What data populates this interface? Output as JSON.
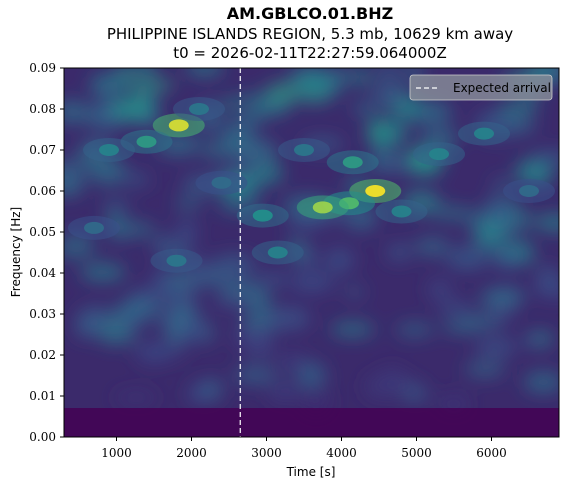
{
  "chart_data": {
    "type": "heatmap",
    "title": "AM.GBLCO.01.BHZ",
    "subtitle": "PHILIPPINE ISLANDS REGION, 5.3 mb, 10629 km away",
    "t0_line": "t0 = 2026-02-11T22:27:59.064000Z",
    "xlabel": "Time [s]",
    "ylabel": "Frequency [Hz]",
    "xlim": [
      300,
      6900
    ],
    "ylim": [
      0.0,
      0.09
    ],
    "x_ticks": [
      1000,
      2000,
      3000,
      4000,
      5000,
      6000
    ],
    "y_ticks": [
      0.0,
      0.01,
      0.02,
      0.03,
      0.04,
      0.05,
      0.06,
      0.07,
      0.08,
      0.09
    ],
    "y_tick_labels": [
      "0.00",
      "0.01",
      "0.02",
      "0.03",
      "0.04",
      "0.05",
      "0.06",
      "0.07",
      "0.08",
      "0.09"
    ],
    "colormap": "viridis",
    "expected_arrival": {
      "time": 2650,
      "label": "Expected arrival",
      "color": "#ffffff",
      "style": "dashed"
    },
    "legend_placement": "top-right",
    "hotspots": [
      {
        "time": 1830,
        "freq": 0.076,
        "intensity": 0.95
      },
      {
        "time": 1400,
        "freq": 0.072,
        "intensity": 0.55
      },
      {
        "time": 900,
        "freq": 0.07,
        "intensity": 0.45
      },
      {
        "time": 4450,
        "freq": 0.06,
        "intensity": 1.0
      },
      {
        "time": 4100,
        "freq": 0.057,
        "intensity": 0.7
      },
      {
        "time": 3750,
        "freq": 0.056,
        "intensity": 0.85
      },
      {
        "time": 4150,
        "freq": 0.067,
        "intensity": 0.55
      },
      {
        "time": 2950,
        "freq": 0.054,
        "intensity": 0.5
      },
      {
        "time": 3150,
        "freq": 0.045,
        "intensity": 0.45
      },
      {
        "time": 5300,
        "freq": 0.069,
        "intensity": 0.45
      },
      {
        "time": 5900,
        "freq": 0.074,
        "intensity": 0.45
      },
      {
        "time": 3500,
        "freq": 0.07,
        "intensity": 0.4
      },
      {
        "time": 4800,
        "freq": 0.055,
        "intensity": 0.45
      },
      {
        "time": 700,
        "freq": 0.051,
        "intensity": 0.35
      },
      {
        "time": 1800,
        "freq": 0.043,
        "intensity": 0.4
      },
      {
        "time": 2100,
        "freq": 0.08,
        "intensity": 0.4
      },
      {
        "time": 6500,
        "freq": 0.06,
        "intensity": 0.35
      },
      {
        "time": 2400,
        "freq": 0.062,
        "intensity": 0.35
      }
    ]
  }
}
